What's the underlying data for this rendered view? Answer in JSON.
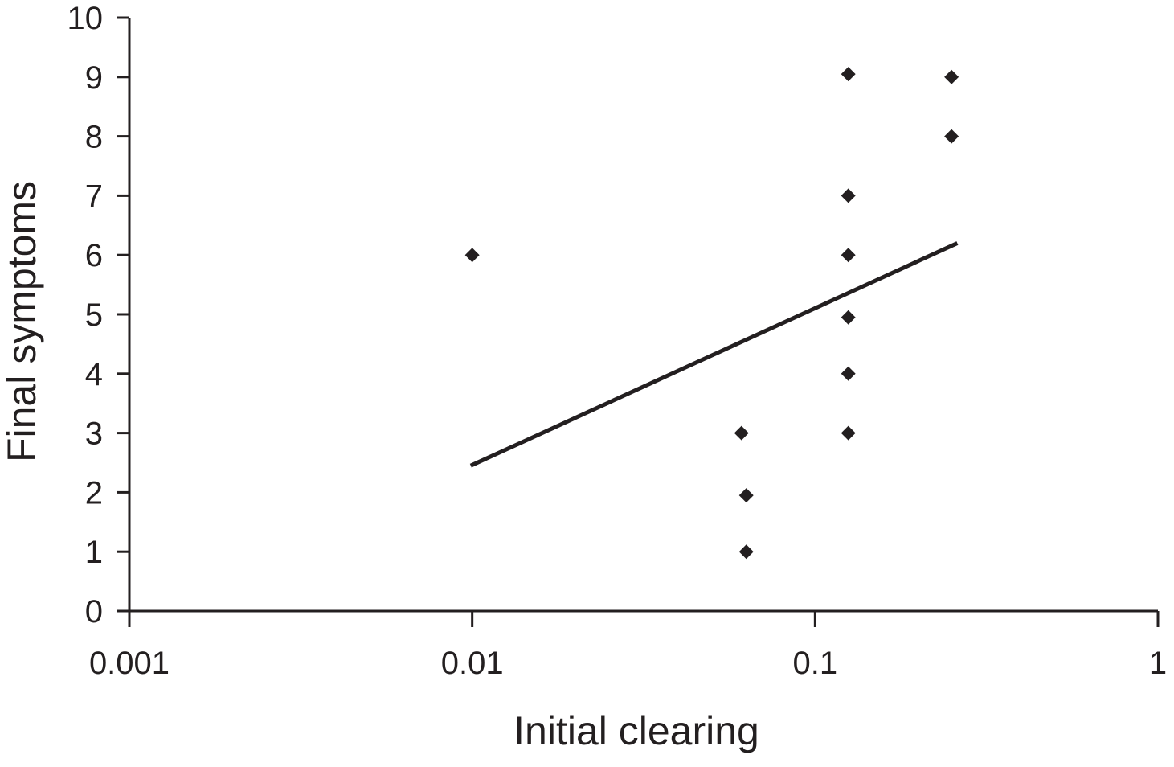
{
  "chart_data": {
    "type": "scatter",
    "title": "",
    "xlabel": "Initial clearing",
    "ylabel": "Final symptoms",
    "xscale": "log",
    "xlim": [
      0.001,
      1
    ],
    "ylim": [
      0,
      10
    ],
    "xticks": [
      0.001,
      0.01,
      0.1,
      1
    ],
    "xtick_labels": [
      "0.001",
      "0.01",
      "0.1",
      "1"
    ],
    "yticks": [
      0,
      1,
      2,
      3,
      4,
      5,
      6,
      7,
      8,
      9,
      10
    ],
    "ytick_labels": [
      "0",
      "1",
      "2",
      "3",
      "4",
      "5",
      "6",
      "7",
      "8",
      "9",
      "10"
    ],
    "grid": false,
    "legend": "none",
    "marker": "diamond",
    "marker_color": "#231f20",
    "line_color": "#231f20",
    "points": [
      {
        "x": 0.01,
        "y": 6
      },
      {
        "x": 0.061,
        "y": 3
      },
      {
        "x": 0.063,
        "y": 1.95
      },
      {
        "x": 0.063,
        "y": 1
      },
      {
        "x": 0.125,
        "y": 9.05
      },
      {
        "x": 0.125,
        "y": 7
      },
      {
        "x": 0.125,
        "y": 6
      },
      {
        "x": 0.125,
        "y": 4.95
      },
      {
        "x": 0.125,
        "y": 4
      },
      {
        "x": 0.125,
        "y": 3
      },
      {
        "x": 0.25,
        "y": 9
      },
      {
        "x": 0.25,
        "y": 8
      }
    ],
    "trendline": {
      "type": "logarithmic",
      "start": {
        "x": 0.0099,
        "y": 2.45
      },
      "end": {
        "x": 0.26,
        "y": 6.2
      }
    }
  }
}
